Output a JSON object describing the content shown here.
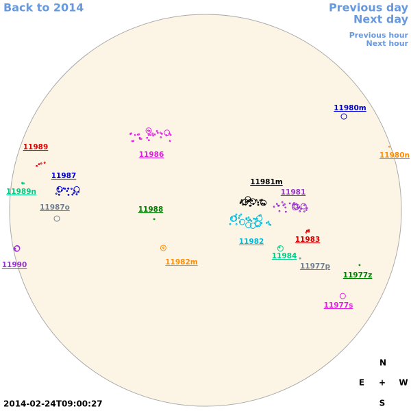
{
  "nav": {
    "back": "Back to 2014",
    "previous_day": "Previous day",
    "next_day": "Next day",
    "previous_hour": "Previous hour",
    "next_hour": "Next hour"
  },
  "regions": [
    {
      "label": "11980m",
      "color": "#0000cc"
    },
    {
      "label": "11989",
      "color": "#dd0000"
    },
    {
      "label": "11986",
      "color": "#e020e0"
    },
    {
      "label": "11980n",
      "color": "#ff8c00"
    },
    {
      "label": "11987",
      "color": "#0000cc"
    },
    {
      "label": "11989n",
      "color": "#00cc88"
    },
    {
      "label": "11981m",
      "color": "#000000"
    },
    {
      "label": "11981",
      "color": "#9933cc"
    },
    {
      "label": "11987o",
      "color": "#708090"
    },
    {
      "label": "11988",
      "color": "#008000"
    },
    {
      "label": "11982",
      "color": "#00bbdd"
    },
    {
      "label": "11983",
      "color": "#dd0000"
    },
    {
      "label": "11984",
      "color": "#00cc88"
    },
    {
      "label": "11990",
      "color": "#9933cc"
    },
    {
      "label": "11982m",
      "color": "#ff8c00"
    },
    {
      "label": "11977p",
      "color": "#708090"
    },
    {
      "label": "11977z",
      "color": "#008000"
    },
    {
      "label": "11977s",
      "color": "#e020e0"
    }
  ],
  "compass": {
    "north": "N",
    "east": "E",
    "center": "+",
    "west": "W",
    "south": "S"
  },
  "timestamp": "2014-02-24T09:00:27"
}
